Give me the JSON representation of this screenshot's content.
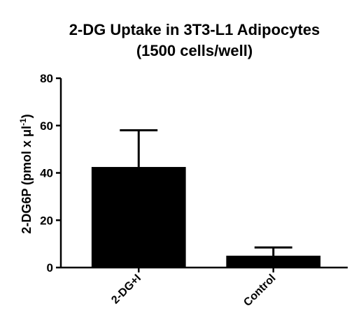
{
  "chart_data": {
    "type": "bar",
    "title_lines": [
      "2-DG Uptake in 3T3-L1 Adipocytes",
      "(1500 cells/well)"
    ],
    "ylabel": "2-DG6P (pmol x μl",
    "ylabel_sup": "-1",
    "ylabel_close": ")",
    "xlabel": "",
    "categories": [
      "2-DG+I",
      "Control"
    ],
    "values": [
      42.5,
      5
    ],
    "errors": [
      15.5,
      3.5
    ],
    "ylim": [
      0,
      80
    ],
    "yticks": [
      0,
      20,
      40,
      60,
      80
    ],
    "ytick_labels": [
      "0",
      "20",
      "40",
      "60",
      "80"
    ],
    "bar_color": "#000000",
    "grid": false
  }
}
